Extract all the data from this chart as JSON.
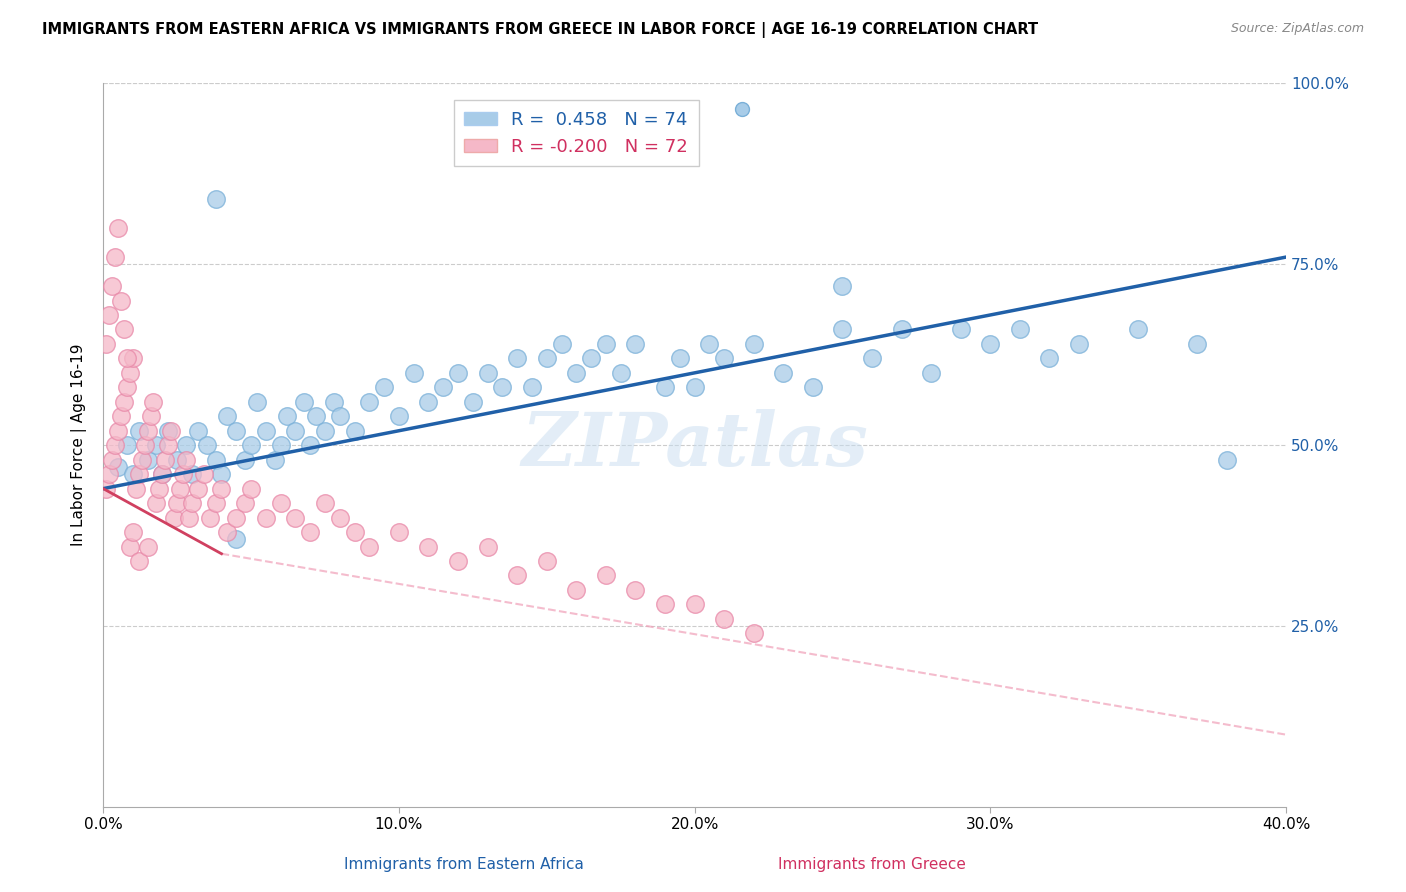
{
  "title": "IMMIGRANTS FROM EASTERN AFRICA VS IMMIGRANTS FROM GREECE IN LABOR FORCE | AGE 16-19 CORRELATION CHART",
  "source": "Source: ZipAtlas.com",
  "ylabel": "In Labor Force | Age 16-19",
  "xlabel_blue": "Immigrants from Eastern Africa",
  "xlabel_pink": "Immigrants from Greece",
  "xlim": [
    0.0,
    0.4
  ],
  "ylim": [
    0.0,
    1.0
  ],
  "xtick_labels": [
    "0.0%",
    "10.0%",
    "20.0%",
    "30.0%",
    "40.0%"
  ],
  "xtick_vals": [
    0.0,
    0.1,
    0.2,
    0.3,
    0.4
  ],
  "ytick_right_labels": [
    "100.0%",
    "75.0%",
    "50.0%",
    "25.0%"
  ],
  "ytick_right_vals": [
    1.0,
    0.75,
    0.5,
    0.25
  ],
  "r_blue": 0.458,
  "n_blue": 74,
  "r_pink": -0.2,
  "n_pink": 72,
  "blue_color": "#a8cce8",
  "pink_color": "#f5b8c8",
  "blue_line_color": "#2060a8",
  "pink_line_solid_color": "#d04060",
  "pink_line_dash_color": "#f0a0b8",
  "grid_color": "#cccccc",
  "watermark": "ZIPatlas",
  "blue_points_x": [
    0.005,
    0.008,
    0.01,
    0.012,
    0.015,
    0.018,
    0.02,
    0.022,
    0.025,
    0.028,
    0.03,
    0.032,
    0.035,
    0.038,
    0.04,
    0.042,
    0.045,
    0.048,
    0.05,
    0.052,
    0.055,
    0.058,
    0.06,
    0.062,
    0.065,
    0.068,
    0.07,
    0.072,
    0.075,
    0.078,
    0.08,
    0.085,
    0.09,
    0.095,
    0.1,
    0.105,
    0.11,
    0.115,
    0.12,
    0.125,
    0.13,
    0.135,
    0.14,
    0.145,
    0.15,
    0.155,
    0.16,
    0.165,
    0.17,
    0.175,
    0.18,
    0.19,
    0.195,
    0.2,
    0.205,
    0.21,
    0.22,
    0.23,
    0.24,
    0.25,
    0.26,
    0.27,
    0.28,
    0.29,
    0.3,
    0.31,
    0.32,
    0.33,
    0.35,
    0.37,
    0.038,
    0.25,
    0.045,
    0.38
  ],
  "blue_points_y": [
    0.47,
    0.5,
    0.46,
    0.52,
    0.48,
    0.5,
    0.46,
    0.52,
    0.48,
    0.5,
    0.46,
    0.52,
    0.5,
    0.48,
    0.46,
    0.54,
    0.52,
    0.48,
    0.5,
    0.56,
    0.52,
    0.48,
    0.5,
    0.54,
    0.52,
    0.56,
    0.5,
    0.54,
    0.52,
    0.56,
    0.54,
    0.52,
    0.56,
    0.58,
    0.54,
    0.6,
    0.56,
    0.58,
    0.6,
    0.56,
    0.6,
    0.58,
    0.62,
    0.58,
    0.62,
    0.64,
    0.6,
    0.62,
    0.64,
    0.6,
    0.64,
    0.58,
    0.62,
    0.58,
    0.64,
    0.62,
    0.64,
    0.6,
    0.58,
    0.66,
    0.62,
    0.66,
    0.6,
    0.66,
    0.64,
    0.66,
    0.62,
    0.64,
    0.66,
    0.64,
    0.84,
    0.72,
    0.37,
    0.48
  ],
  "pink_points_x": [
    0.001,
    0.002,
    0.003,
    0.004,
    0.005,
    0.006,
    0.007,
    0.008,
    0.009,
    0.01,
    0.011,
    0.012,
    0.013,
    0.014,
    0.015,
    0.016,
    0.017,
    0.018,
    0.019,
    0.02,
    0.021,
    0.022,
    0.023,
    0.024,
    0.025,
    0.026,
    0.027,
    0.028,
    0.029,
    0.03,
    0.032,
    0.034,
    0.036,
    0.038,
    0.04,
    0.042,
    0.045,
    0.048,
    0.05,
    0.055,
    0.06,
    0.065,
    0.07,
    0.075,
    0.08,
    0.085,
    0.09,
    0.1,
    0.11,
    0.12,
    0.13,
    0.14,
    0.15,
    0.16,
    0.17,
    0.18,
    0.19,
    0.2,
    0.21,
    0.22,
    0.001,
    0.002,
    0.003,
    0.004,
    0.005,
    0.006,
    0.007,
    0.008,
    0.009,
    0.01,
    0.012,
    0.015
  ],
  "pink_points_y": [
    0.44,
    0.46,
    0.48,
    0.5,
    0.52,
    0.54,
    0.56,
    0.58,
    0.6,
    0.62,
    0.44,
    0.46,
    0.48,
    0.5,
    0.52,
    0.54,
    0.56,
    0.42,
    0.44,
    0.46,
    0.48,
    0.5,
    0.52,
    0.4,
    0.42,
    0.44,
    0.46,
    0.48,
    0.4,
    0.42,
    0.44,
    0.46,
    0.4,
    0.42,
    0.44,
    0.38,
    0.4,
    0.42,
    0.44,
    0.4,
    0.42,
    0.4,
    0.38,
    0.42,
    0.4,
    0.38,
    0.36,
    0.38,
    0.36,
    0.34,
    0.36,
    0.32,
    0.34,
    0.3,
    0.32,
    0.3,
    0.28,
    0.28,
    0.26,
    0.24,
    0.64,
    0.68,
    0.72,
    0.76,
    0.8,
    0.7,
    0.66,
    0.62,
    0.36,
    0.38,
    0.34,
    0.36
  ]
}
